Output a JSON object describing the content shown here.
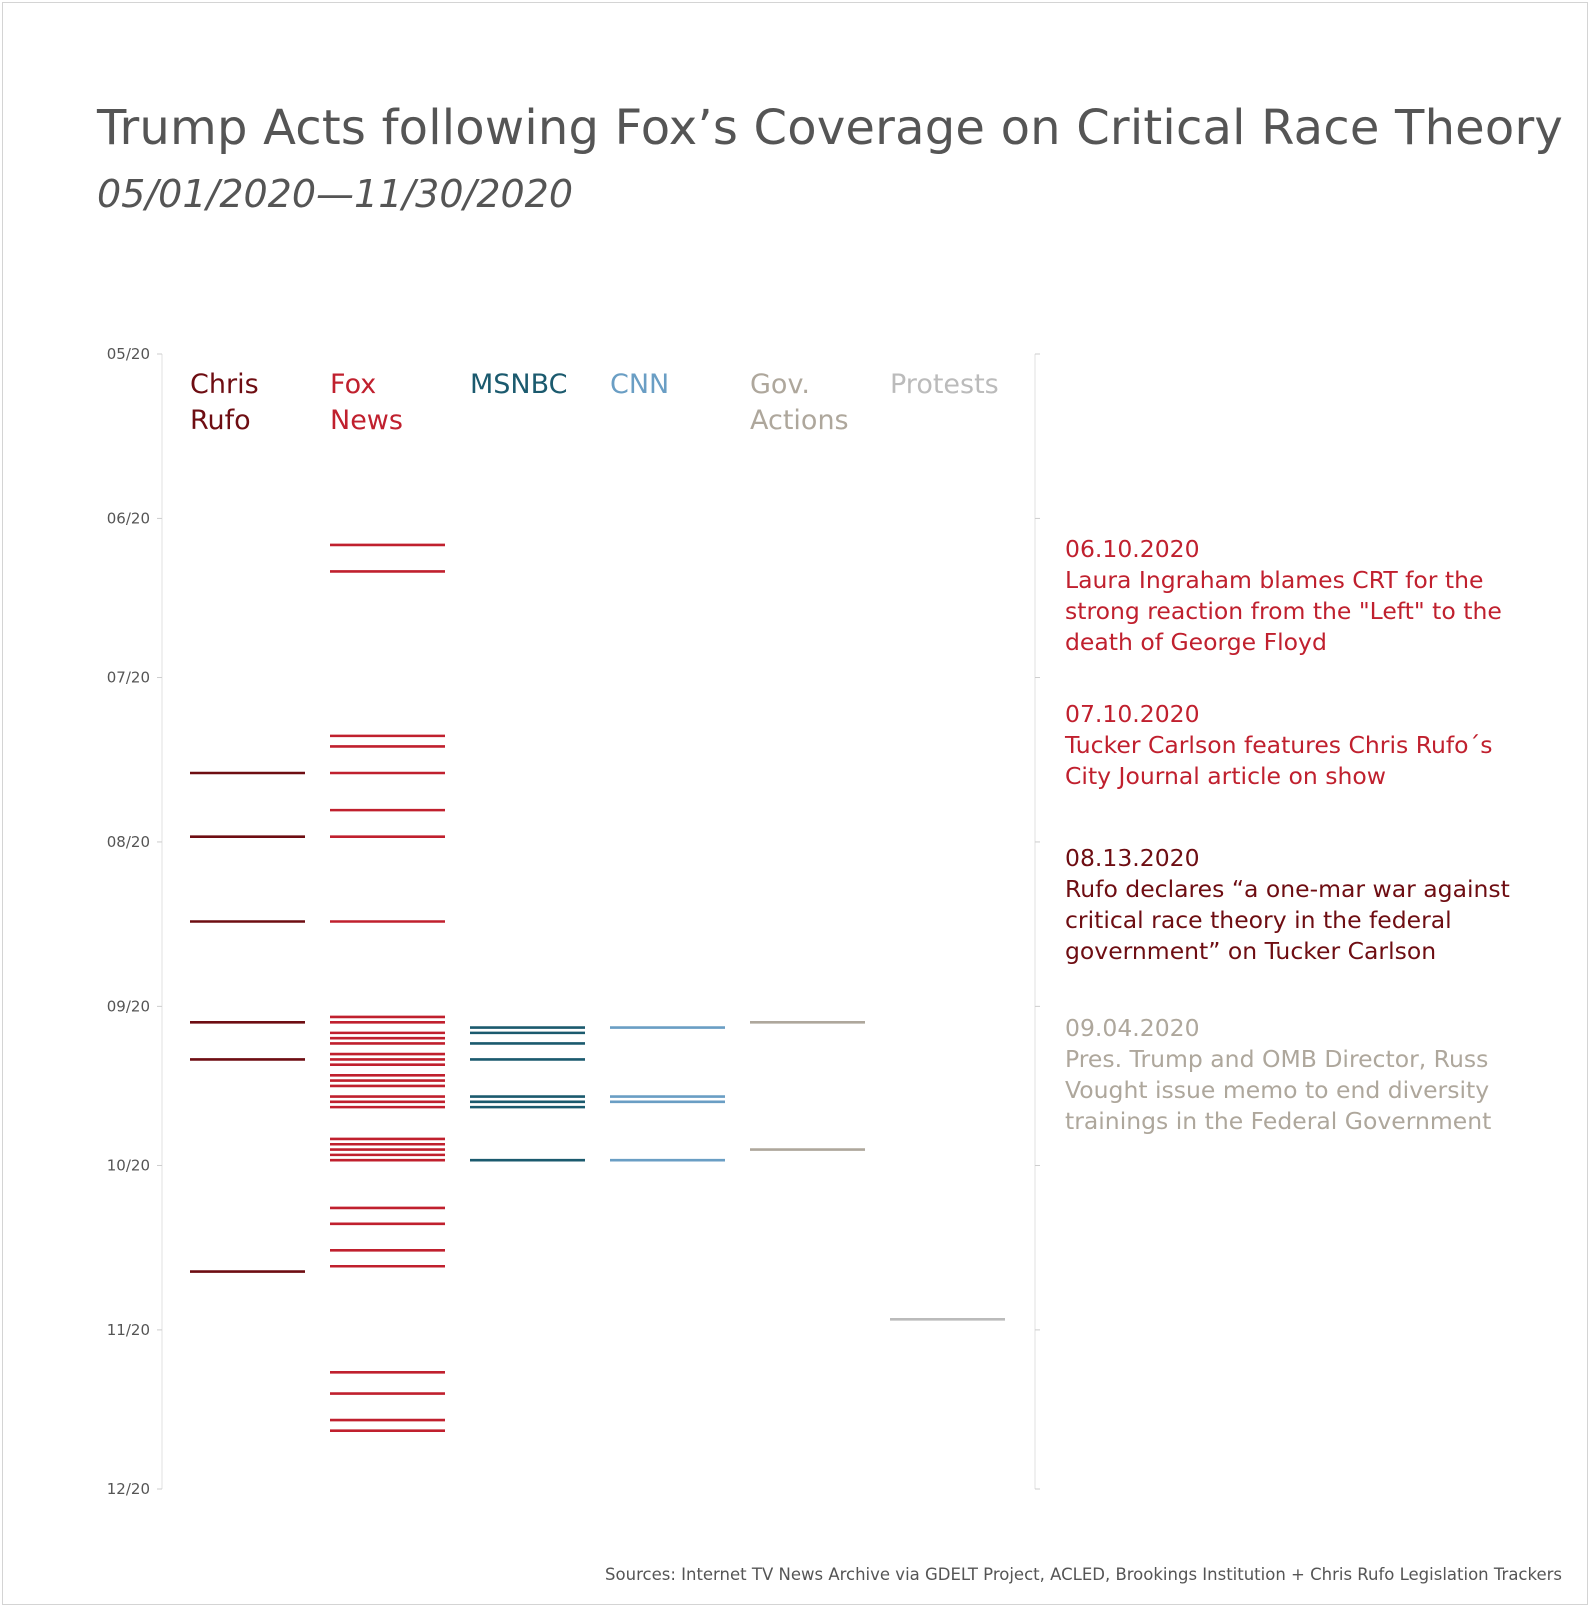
{
  "title": "Trump Acts following Fox’s Coverage on Critical Race Theory",
  "subtitle": "05/01/2020—11/30/2020",
  "source": "Sources: Internet TV News Archive via GDELT Project, ACLED, Brookings Institution + Chris Rufo Legislation Trackers",
  "chart_data": {
    "type": "strip",
    "y_axis": {
      "range": [
        "2020-05-01",
        "2020-12-01"
      ],
      "ticks": [
        {
          "date": "2020-05-01",
          "label": "05/20"
        },
        {
          "date": "2020-06-01",
          "label": "06/20"
        },
        {
          "date": "2020-07-01",
          "label": "07/20"
        },
        {
          "date": "2020-08-01",
          "label": "08/20"
        },
        {
          "date": "2020-09-01",
          "label": "09/20"
        },
        {
          "date": "2020-10-01",
          "label": "10/20"
        },
        {
          "date": "2020-11-01",
          "label": "11/20"
        },
        {
          "date": "2020-12-01",
          "label": "12/20"
        }
      ]
    },
    "series": [
      {
        "name": "Chris Rufo",
        "label_lines": [
          "Chris",
          "Rufo"
        ],
        "color": "#6e0d12",
        "dates": [
          "2020-07-19",
          "2020-07-31",
          "2020-08-16",
          "2020-09-04",
          "2020-09-11",
          "2020-10-21"
        ]
      },
      {
        "name": "Fox News",
        "label_lines": [
          "Fox",
          "News"
        ],
        "color": "#c0202e",
        "dates": [
          "2020-06-06",
          "2020-06-11",
          "2020-07-12",
          "2020-07-14",
          "2020-07-19",
          "2020-07-26",
          "2020-07-31",
          "2020-08-16",
          "2020-09-03",
          "2020-09-04",
          "2020-09-06",
          "2020-09-07",
          "2020-09-08",
          "2020-09-10",
          "2020-09-11",
          "2020-09-12",
          "2020-09-14",
          "2020-09-15",
          "2020-09-16",
          "2020-09-18",
          "2020-09-19",
          "2020-09-20",
          "2020-09-26",
          "2020-09-27",
          "2020-09-28",
          "2020-09-29",
          "2020-09-30",
          "2020-10-09",
          "2020-10-12",
          "2020-10-17",
          "2020-10-20",
          "2020-11-09",
          "2020-11-13",
          "2020-11-18",
          "2020-11-20"
        ]
      },
      {
        "name": "MSNBC",
        "label_lines": [
          "MSNBC"
        ],
        "color": "#1b5a6e",
        "dates": [
          "2020-09-05",
          "2020-09-06",
          "2020-09-08",
          "2020-09-11",
          "2020-09-18",
          "2020-09-19",
          "2020-09-20",
          "2020-09-30"
        ]
      },
      {
        "name": "CNN",
        "label_lines": [
          "CNN"
        ],
        "color": "#6a9ec4",
        "dates": [
          "2020-09-05",
          "2020-09-18",
          "2020-09-19",
          "2020-09-30"
        ]
      },
      {
        "name": "Gov. Actions",
        "label_lines": [
          "Gov.",
          "Actions"
        ],
        "color": "#aea79c",
        "dates": [
          "2020-09-04",
          "2020-09-28"
        ]
      },
      {
        "name": "Protests",
        "label_lines": [
          "Protests"
        ],
        "color": "#bbbbbb",
        "dates": [
          "2020-10-30"
        ]
      }
    ],
    "annotations": [
      {
        "date": "06.10.2020",
        "text": "Laura Ingraham blames CRT for the strong reaction from the \"Left\" to the death of George Floyd",
        "color": "#c0202e"
      },
      {
        "date": "07.10.2020",
        "text": "Tucker Carlson features Chris Rufo´s City Journal article on show",
        "color": "#c0202e"
      },
      {
        "date": "08.13.2020",
        "text": "Rufo declares “a one-mar war against critical race theory in the federal government” on Tucker Carlson",
        "color": "#6e0d12"
      },
      {
        "date": "09.04.2020",
        "text": "Pres. Trump and OMB Director, Russ Vought issue memo to end diversity trainings in  the Federal Government",
        "color": "#aea79c"
      }
    ]
  }
}
